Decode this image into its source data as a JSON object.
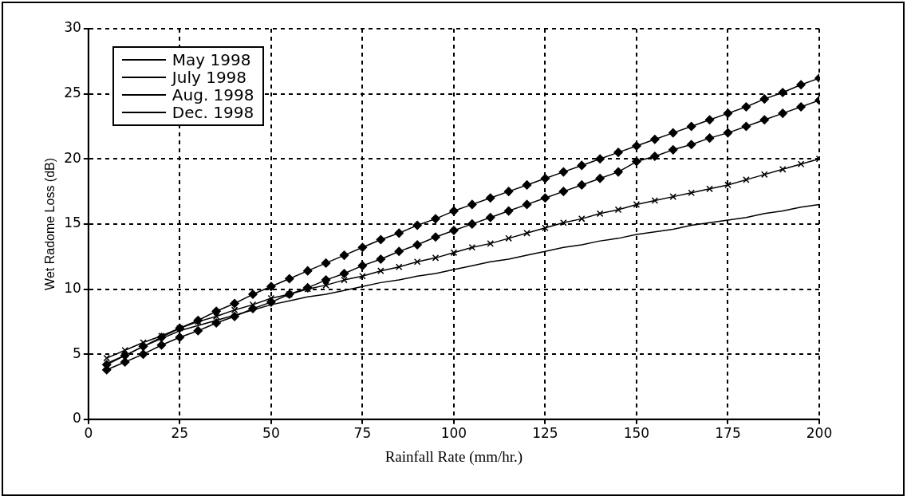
{
  "chart_data": {
    "type": "line",
    "xlabel": "Rainfall Rate (mm/hr.)",
    "ylabel": "Wet Radome Loss (dB)",
    "x": [
      5,
      10,
      15,
      20,
      25,
      30,
      35,
      40,
      45,
      50,
      55,
      60,
      65,
      70,
      75,
      80,
      85,
      90,
      95,
      100,
      105,
      110,
      115,
      120,
      125,
      130,
      135,
      140,
      145,
      150,
      155,
      160,
      165,
      170,
      175,
      180,
      185,
      190,
      195,
      200
    ],
    "series": [
      {
        "name": "May 1998",
        "color": "#000000",
        "marker": "cross",
        "values": [
          4.7,
          5.3,
          5.9,
          6.4,
          7.0,
          7.5,
          7.9,
          8.4,
          8.8,
          9.3,
          9.6,
          10.0,
          10.3,
          10.7,
          11.0,
          11.4,
          11.7,
          12.1,
          12.4,
          12.8,
          13.2,
          13.5,
          13.9,
          14.3,
          14.7,
          15.1,
          15.4,
          15.8,
          16.1,
          16.5,
          16.8,
          17.1,
          17.4,
          17.7,
          18.0,
          18.4,
          18.8,
          19.2,
          19.6,
          20.0
        ]
      },
      {
        "name": "July 1998",
        "color": "#000000",
        "marker": "diamond",
        "values": [
          3.8,
          4.4,
          5.0,
          5.7,
          6.3,
          6.8,
          7.4,
          7.9,
          8.5,
          9.0,
          9.6,
          10.1,
          10.7,
          11.2,
          11.8,
          12.3,
          12.9,
          13.4,
          14.0,
          14.5,
          15.0,
          15.5,
          16.0,
          16.5,
          17.0,
          17.5,
          18.0,
          18.5,
          19.0,
          19.8,
          20.2,
          20.7,
          21.1,
          21.6,
          22.0,
          22.5,
          23.0,
          23.5,
          24.0,
          24.5
        ]
      },
      {
        "name": "Aug. 1998",
        "color": "#000000",
        "marker": "diamond",
        "values": [
          4.2,
          4.9,
          5.6,
          6.3,
          7.0,
          7.6,
          8.3,
          8.9,
          9.6,
          10.2,
          10.8,
          11.4,
          12.0,
          12.6,
          13.2,
          13.8,
          14.3,
          14.9,
          15.4,
          16.0,
          16.5,
          17.0,
          17.5,
          18.0,
          18.5,
          19.0,
          19.5,
          20.0,
          20.5,
          21.0,
          21.5,
          22.0,
          22.5,
          23.0,
          23.5,
          24.0,
          24.6,
          25.1,
          25.7,
          26.2
        ]
      },
      {
        "name": "Dec. 1998",
        "color": "#000000",
        "marker": "none",
        "values": [
          4.3,
          4.9,
          5.6,
          6.2,
          6.8,
          7.2,
          7.6,
          8.0,
          8.4,
          8.8,
          9.1,
          9.4,
          9.6,
          9.9,
          10.2,
          10.5,
          10.7,
          11.0,
          11.2,
          11.5,
          11.8,
          12.1,
          12.3,
          12.6,
          12.9,
          13.2,
          13.4,
          13.7,
          13.9,
          14.2,
          14.4,
          14.6,
          14.9,
          15.1,
          15.3,
          15.5,
          15.8,
          16.0,
          16.3,
          16.5
        ]
      }
    ],
    "xlim": [
      0,
      200
    ],
    "xticks": [
      0,
      25,
      50,
      75,
      100,
      125,
      150,
      175,
      200
    ],
    "ylim": [
      0,
      30
    ],
    "yticks": [
      0,
      5,
      10,
      15,
      20,
      25,
      30
    ],
    "grid": true,
    "legend": "top left",
    "line_style": "solid"
  }
}
